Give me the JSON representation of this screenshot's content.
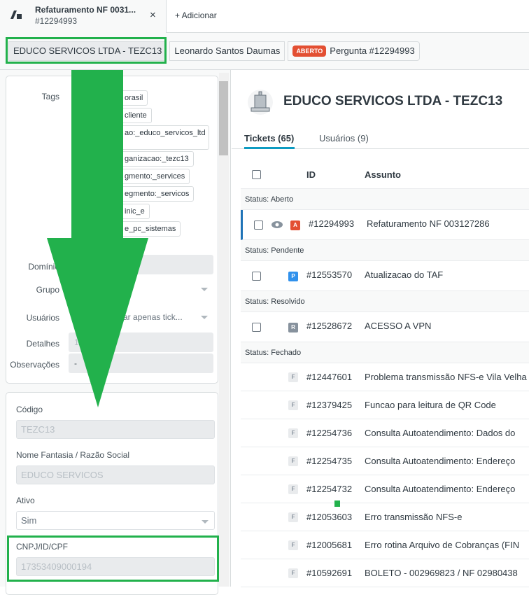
{
  "tab": {
    "title": "Refaturamento NF 0031...",
    "subtitle": "#12294993",
    "close": "×",
    "add": "+ Adicionar"
  },
  "breadcrumbs": {
    "org": "EDUCO SERVICOS LTDA - TEZC13",
    "user": "Leonardo Santos Daumas",
    "badge": "ABERTO",
    "ticket": "Pergunta #12294993"
  },
  "org_panel": {
    "tags_label": "Tags",
    "tags": [
      "orasil",
      "cliente",
      "ao:_educo_servicos_ltd",
      "ganizacao:_tezc13",
      "gmento:_services",
      "egmento:_servicos",
      "inic_e",
      "e_pc_sistemas"
    ],
    "dominio_label": "Domínio",
    "grupo_label": "Grupo",
    "usuarios_label": "Usuários",
    "usuarios_value": "zar apenas tick...",
    "detalhes_label": "Detalhes",
    "detalhes_value": "1        000194",
    "observacoes_label": "Observações",
    "observacoes_value": "-"
  },
  "fields": {
    "codigo_label": "Código",
    "codigo": "TEZC13",
    "nome_label": "Nome Fantasia / Razão Social",
    "nome": "EDUCO SERVICOS",
    "ativo_label": "Ativo",
    "ativo": "Sim",
    "cnpj_label": "CNPJ/ID/CPF",
    "cnpj": "17353409000194"
  },
  "main": {
    "title": "EDUCO SERVICOS LTDA - TEZC13",
    "tabs": [
      {
        "label": "Tickets (65)"
      },
      {
        "label": "Usuários (9)"
      }
    ],
    "col_id": "ID",
    "col_subject": "Assunto"
  },
  "groups": [
    {
      "status": "Status: Aberto",
      "rows": [
        {
          "letter": "A",
          "color": "#e34f32",
          "id": "#12294993",
          "subject": "Refaturamento NF 003127286"
        }
      ]
    },
    {
      "status": "Status: Pendente",
      "rows": [
        {
          "letter": "P",
          "color": "#3091ec",
          "id": "#12553570",
          "subject": "Atualizacao do TAF"
        }
      ]
    },
    {
      "status": "Status: Resolvido",
      "rows": [
        {
          "letter": "R",
          "color": "#87929d",
          "id": "#12528672",
          "subject": "ACESSO A VPN"
        }
      ]
    },
    {
      "status": "Status: Fechado",
      "rows": [
        {
          "letter": "F",
          "id": "#12447601",
          "subject": "Problema transmissão NFS-e Vila Velha"
        },
        {
          "letter": "F",
          "id": "#12379425",
          "subject": "Funcao para leitura de QR Code"
        },
        {
          "letter": "F",
          "id": "#12254736",
          "subject": "Consulta Autoatendimento: Dados do"
        },
        {
          "letter": "F",
          "id": "#12254735",
          "subject": "Consulta Autoatendimento: Endereço"
        },
        {
          "letter": "F",
          "id": "#12254732",
          "subject": "Consulta Autoatendimento: Endereço"
        },
        {
          "letter": "F",
          "id": "#12053603",
          "subject": "Erro transmissão NFS-e"
        },
        {
          "letter": "F",
          "id": "#12005681",
          "subject": "Erro rotina Arquivo de Cobranças (FIN"
        },
        {
          "letter": "F",
          "id": "#10592691",
          "subject": "BOLETO - 002969823 / NF 02980438"
        }
      ]
    }
  ],
  "colors": {
    "annotation": "#22b14c",
    "accent": "#0d9bc1",
    "open": "#e34f32"
  }
}
